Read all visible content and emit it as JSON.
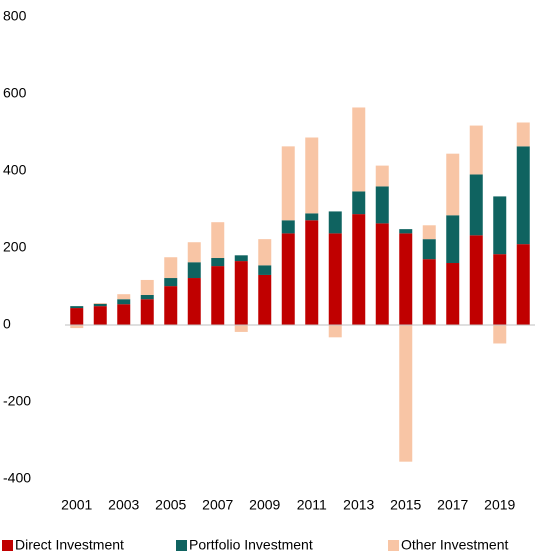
{
  "chart_data": {
    "type": "bar",
    "stacked": true,
    "categories": [
      "2001",
      null,
      "2003",
      null,
      "2005",
      null,
      "2007",
      null,
      "2009",
      null,
      "2011",
      null,
      "2013",
      null,
      "2015",
      null,
      "2017",
      null,
      "2019",
      null
    ],
    "series": [
      {
        "name": "Direct Investment",
        "color": "#c00000",
        "values": [
          44,
          49,
          54,
          67,
          101,
          122,
          153,
          166,
          130,
          238,
          272,
          238,
          288,
          264,
          238,
          171,
          161,
          233,
          184,
          210
        ]
      },
      {
        "name": "Portfolio Investment",
        "color": "#0f6360",
        "values": [
          5,
          6,
          13,
          11,
          21,
          41,
          21,
          15,
          25,
          34,
          18,
          57,
          59,
          96,
          11,
          52,
          124,
          158,
          150,
          254
        ]
      },
      {
        "name": "Other Investment",
        "color": "#f8c5a5",
        "values": [
          -8,
          2,
          13,
          39,
          54,
          52,
          93,
          -18,
          68,
          192,
          197,
          -32,
          218,
          54,
          -355,
          36,
          160,
          127,
          -48,
          62
        ]
      }
    ],
    "ylim": [
      -400,
      800
    ],
    "yticks": [
      -400,
      -200,
      0,
      200,
      400,
      600,
      800
    ],
    "grid": false,
    "legend": "bottom"
  }
}
